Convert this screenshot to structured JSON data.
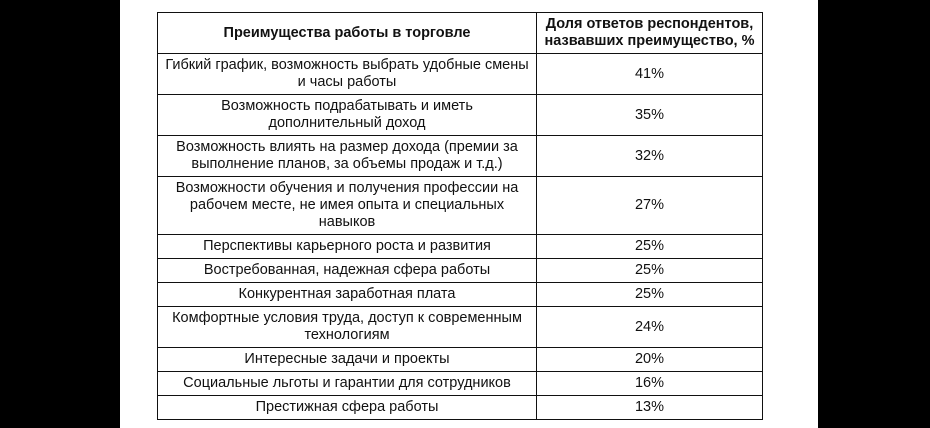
{
  "table": {
    "headers": [
      "Преимущества работы в торговле",
      "Доля ответов респондентов, назвавших преимущество, %"
    ],
    "rows": [
      {
        "advantage": "Гибкий график, возможность выбрать удобные смены и часы работы",
        "share": "41%"
      },
      {
        "advantage": "Возможность подрабатывать и иметь дополнительный доход",
        "share": "35%"
      },
      {
        "advantage": "Возможность влиять на размер дохода (премии за выполнение планов, за объемы продаж и т.д.)",
        "share": "32%"
      },
      {
        "advantage": "Возможности обучения и получения профессии на рабочем месте, не имея опыта и специальных навыков",
        "share": "27%"
      },
      {
        "advantage": "Перспективы карьерного роста и развития",
        "share": "25%"
      },
      {
        "advantage": "Востребованная, надежная сфера работы",
        "share": "25%"
      },
      {
        "advantage": "Конкурентная заработная плата",
        "share": "25%"
      },
      {
        "advantage": "Комфортные условия труда, доступ к современным технологиям",
        "share": "24%"
      },
      {
        "advantage": "Интересные задачи и проекты",
        "share": "20%"
      },
      {
        "advantage": "Социальные льготы и гарантии для сотрудников",
        "share": "16%"
      },
      {
        "advantage": "Престижная сфера работы",
        "share": "13%"
      }
    ]
  }
}
